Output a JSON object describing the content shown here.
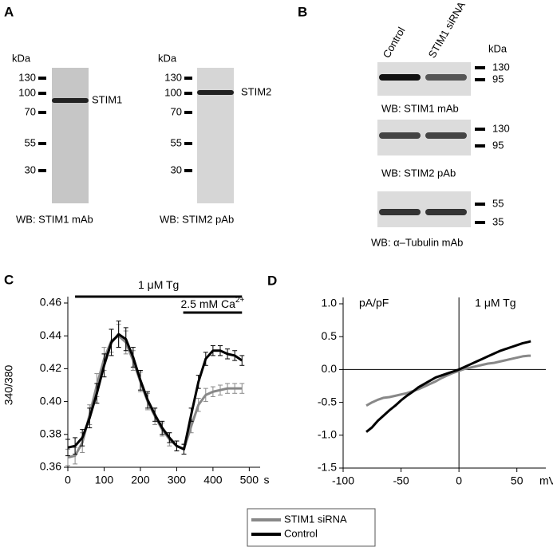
{
  "panel_a": {
    "label": "A",
    "blots": [
      {
        "unit": "kDa",
        "markers": [
          "130",
          "100",
          "70",
          "55",
          "30"
        ],
        "band": "STIM1",
        "caption": "WB: STIM1 mAb"
      },
      {
        "unit": "kDa",
        "markers": [
          "130",
          "100",
          "70",
          "55",
          "30"
        ],
        "band": "STIM2",
        "caption": "WB: STIM2 pAb"
      }
    ]
  },
  "panel_b": {
    "label": "B",
    "lanes": [
      "Control",
      "STIM1 siRNA"
    ],
    "unit": "kDa",
    "blots": [
      {
        "markers": [
          "130",
          "95"
        ],
        "caption": "WB: STIM1 mAb"
      },
      {
        "markers": [
          "130",
          "95"
        ],
        "caption": "WB: STIM2 pAb"
      },
      {
        "markers": [
          "55",
          "35"
        ],
        "caption": "WB: α–Tubulin mAb"
      }
    ]
  },
  "chart_data": [
    {
      "type": "line",
      "panel_label": "C",
      "xlabel": "s",
      "ylabel": "340/380",
      "annotations": [
        {
          "text": "1 μM Tg",
          "x": [
            20,
            480
          ]
        },
        {
          "text": "2.5 mM Ca",
          "superscript": "2+",
          "x": [
            318,
            480
          ]
        }
      ],
      "x": [
        0,
        20,
        40,
        60,
        80,
        100,
        120,
        140,
        160,
        180,
        200,
        220,
        240,
        260,
        280,
        300,
        320,
        340,
        360,
        380,
        400,
        420,
        440,
        460,
        480
      ],
      "xlim": [
        0,
        530
      ],
      "xticks": [
        0,
        100,
        200,
        300,
        400,
        500
      ],
      "ylim": [
        0.36,
        0.46
      ],
      "yticks": [
        0.36,
        0.38,
        {
          "value": 0.4,
          "label": "0.40"
        },
        0.42,
        0.44,
        0.46
      ],
      "series": [
        {
          "name": "STIM1 siRNA",
          "color": "#888888",
          "values": [
            0.366,
            0.367,
            0.375,
            0.392,
            0.41,
            0.426,
            0.437,
            0.44,
            0.436,
            0.425,
            0.412,
            0.4,
            0.391,
            0.383,
            0.377,
            0.373,
            0.371,
            0.385,
            0.398,
            0.404,
            0.406,
            0.407,
            0.408,
            0.408,
            0.408
          ],
          "errors": [
            0.005,
            0.005,
            0.006,
            0.006,
            0.007,
            0.007,
            0.007,
            0.007,
            0.007,
            0.006,
            0.006,
            0.005,
            0.005,
            0.004,
            0.004,
            0.003,
            0.003,
            0.004,
            0.004,
            0.004,
            0.003,
            0.003,
            0.003,
            0.003,
            0.003
          ]
        },
        {
          "name": "Control",
          "color": "#000000",
          "values": [
            0.372,
            0.373,
            0.378,
            0.39,
            0.405,
            0.422,
            0.436,
            0.441,
            0.438,
            0.427,
            0.413,
            0.401,
            0.392,
            0.384,
            0.378,
            0.373,
            0.371,
            0.392,
            0.412,
            0.426,
            0.431,
            0.431,
            0.429,
            0.428,
            0.425
          ],
          "errors": [
            0.005,
            0.005,
            0.005,
            0.006,
            0.006,
            0.007,
            0.008,
            0.008,
            0.007,
            0.006,
            0.006,
            0.005,
            0.004,
            0.004,
            0.003,
            0.003,
            0.003,
            0.004,
            0.004,
            0.004,
            0.003,
            0.003,
            0.003,
            0.003,
            0.003
          ]
        }
      ]
    },
    {
      "type": "line",
      "panel_label": "D",
      "xlabel": "mV",
      "ylabel": "pA/pF",
      "origin_lines": true,
      "annotations": [
        {
          "text": "1 μM Tg"
        }
      ],
      "x": [
        -80,
        -75,
        -70,
        -65,
        -60,
        -55,
        -50,
        -45,
        -40,
        -35,
        -30,
        -25,
        -20,
        -15,
        -10,
        -5,
        0,
        5,
        10,
        15,
        20,
        25,
        30,
        35,
        40,
        45,
        50,
        55,
        60,
        62
      ],
      "xlim": [
        -100,
        75
      ],
      "xticks": [
        -100,
        -50,
        0,
        50
      ],
      "ylim": [
        -1.5,
        1.0
      ],
      "yticks": [
        -1.5,
        {
          "value": -1,
          "label": "-1.0"
        },
        -0.5,
        {
          "value": 0,
          "label": "0.0"
        },
        0.5,
        {
          "value": 1,
          "label": "1.0"
        }
      ],
      "series": [
        {
          "color": "#888888",
          "values": [
            -0.55,
            -0.5,
            -0.46,
            -0.43,
            -0.42,
            -0.4,
            -0.38,
            -0.36,
            -0.33,
            -0.3,
            -0.26,
            -0.22,
            -0.18,
            -0.13,
            -0.09,
            -0.05,
            -0.02,
            0.01,
            0.03,
            0.05,
            0.07,
            0.09,
            0.1,
            0.12,
            0.14,
            0.16,
            0.18,
            0.2,
            0.21,
            0.21
          ]
        },
        {
          "color": "#000000",
          "values": [
            -0.95,
            -0.88,
            -0.78,
            -0.7,
            -0.62,
            -0.55,
            -0.47,
            -0.4,
            -0.34,
            -0.27,
            -0.22,
            -0.17,
            -0.12,
            -0.09,
            -0.06,
            -0.03,
            0,
            0.04,
            0.08,
            0.12,
            0.16,
            0.2,
            0.24,
            0.28,
            0.31,
            0.34,
            0.37,
            0.4,
            0.42,
            0.43
          ]
        }
      ]
    }
  ]
}
